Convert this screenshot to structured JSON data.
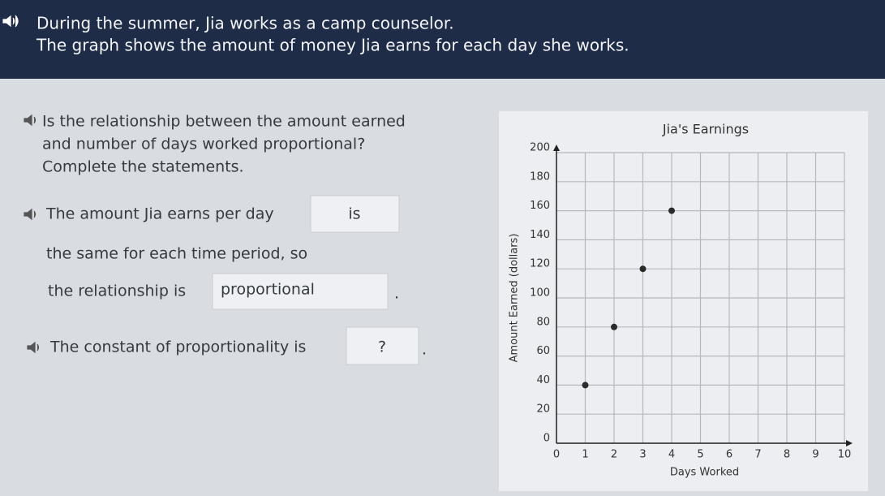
{
  "header": {
    "lines": [
      "During the summer, Jia works as a camp counselor.",
      "The graph shows the amount of money Jia earns for each day she works."
    ]
  },
  "question": {
    "lines": [
      "Is the relationship between the amount earned",
      "and number of days worked proportional?",
      "Complete the statements."
    ]
  },
  "statement1": {
    "before": "The amount Jia earns per day",
    "answer": "is",
    "line2": "the same for each time period, so",
    "line3": "the relationship is",
    "answer2": "proportional",
    "after": "."
  },
  "statement2": {
    "before": "The constant of proportionality is",
    "answer": "?",
    "after": "."
  },
  "chart_data": {
    "type": "scatter",
    "title": "Jia's Earnings",
    "x_label": "Days Worked",
    "y_label": "Amount Earned (dollars)",
    "x": [
      1,
      2,
      3,
      4
    ],
    "values": [
      40,
      80,
      120,
      160
    ],
    "color": "#2a2a2a",
    "xlim": [
      0,
      10
    ],
    "ylim": [
      0,
      200
    ],
    "xticks": [
      0,
      1,
      2,
      3,
      4,
      5,
      6,
      7,
      8,
      9,
      10
    ],
    "yticks": [
      0,
      20,
      40,
      60,
      80,
      100,
      120,
      140,
      160,
      180,
      200
    ],
    "grid": true
  }
}
